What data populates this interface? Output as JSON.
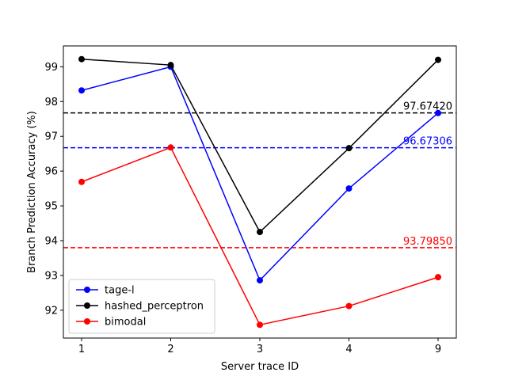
{
  "chart_data": {
    "type": "line",
    "title": "",
    "xlabel": "Server trace ID",
    "ylabel": "Branch Prediction Accuracy (%)",
    "categories": [
      "1",
      "2",
      "3",
      "4",
      "9"
    ],
    "ylim": [
      91.2,
      99.6
    ],
    "yticks": [
      92,
      93,
      94,
      95,
      96,
      97,
      98,
      99
    ],
    "grid": false,
    "legend_position": "lower-left",
    "series": [
      {
        "name": "tage-l",
        "color": "#0000ff",
        "values": [
          98.32,
          99.0,
          92.86,
          95.5,
          97.67
        ]
      },
      {
        "name": "hashed_perceptron",
        "color": "#000000",
        "values": [
          99.22,
          99.05,
          94.25,
          96.66,
          99.2
        ]
      },
      {
        "name": "bimodal",
        "color": "#ff0000",
        "values": [
          95.69,
          96.68,
          91.58,
          92.12,
          92.95
        ]
      }
    ],
    "mean_lines": [
      {
        "label": "97.67420",
        "value": 97.6742,
        "color": "#000000"
      },
      {
        "label": "96.67306",
        "value": 96.67306,
        "color": "#0000ff"
      },
      {
        "label": "93.79850",
        "value": 93.7985,
        "color": "#ff0000"
      }
    ]
  }
}
